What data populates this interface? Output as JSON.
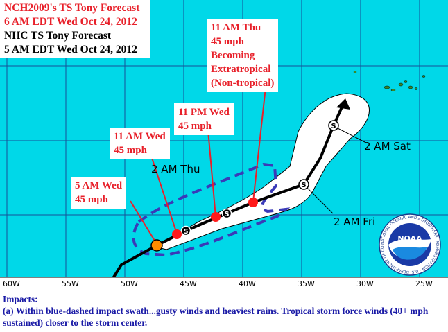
{
  "header": {
    "nch_title": "NCH2009's TS Tony Forecast",
    "nch_time": "6 AM EDT Wed Oct 24, 2012",
    "nhc_title": "NHC TS Tony Forecast",
    "nhc_time": "5 AM EDT Wed Oct 24, 2012"
  },
  "nch_points": [
    {
      "lines": [
        "5 AM Wed",
        "45 mph"
      ]
    },
    {
      "lines": [
        "11 AM Wed",
        "45 mph"
      ]
    },
    {
      "lines": [
        "11 PM Wed",
        "45 mph"
      ]
    },
    {
      "lines": [
        "11 AM Thu",
        "45 mph",
        "Becoming",
        "Extratropical",
        "(Non-tropical)"
      ]
    }
  ],
  "nhc_points": {
    "thu": "2 AM Thu",
    "fri": "2 AM Fri",
    "sat": "2 AM Sat",
    "marker_letter": "S"
  },
  "axis": {
    "ticks": [
      "60W",
      "55W",
      "50W",
      "45W",
      "40W",
      "35W",
      "30W",
      "25W"
    ]
  },
  "logo": {
    "name": "NOAA",
    "ring_text": "NATIONAL OCEANIC AND ATMOSPHERIC ADMINISTRATION · U.S. DEPARTMENT OF COMMERCE"
  },
  "impacts": {
    "title": "Impacts:",
    "text": "(a) Within blue-dashed impact swath...gusty winds and heaviest rains. Tropical storm force winds (40+ mph sustained) closer to the storm center."
  },
  "colors": {
    "ocean": "#00d8e8",
    "cone": "#ffffff",
    "track": "#000000",
    "swath": "#3a3ab8",
    "nch_point": "#ff1a1a",
    "current_point": "#ff8c00",
    "label_red": "#e8202a",
    "impacts_text": "#1a1aa6"
  }
}
